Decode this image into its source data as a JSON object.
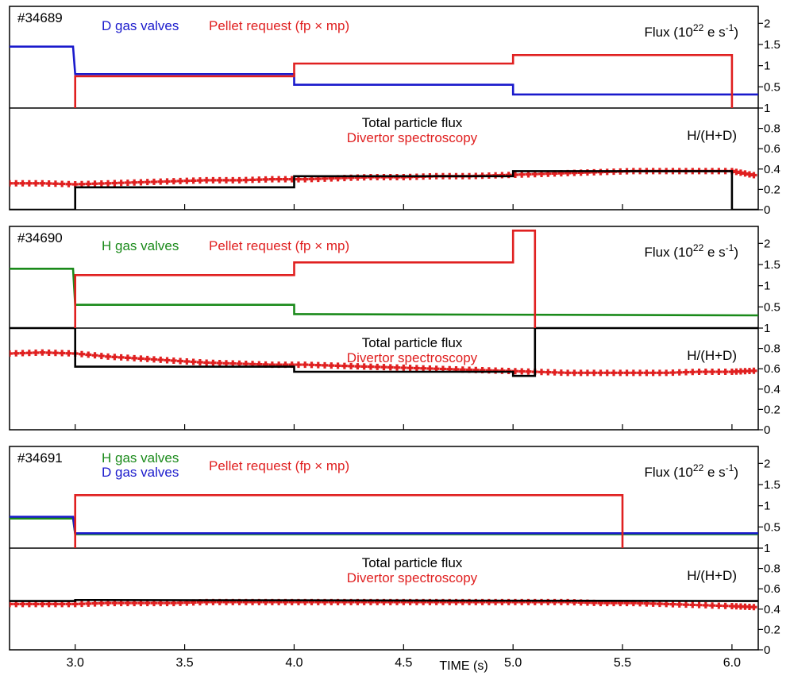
{
  "colors": {
    "pellet": "#e02020",
    "d_gas": "#1a1acc",
    "h_gas": "#1a8a1a",
    "total": "#000000",
    "spectroscopy": "#e02020"
  },
  "x_axis": {
    "label": "TIME (s)",
    "range": [
      2.7,
      6.12
    ],
    "ticks": [
      3.0,
      3.5,
      4.0,
      4.5,
      5.0,
      5.5,
      6.0
    ],
    "tick_labels": [
      "3.0",
      "3.5",
      "4.0",
      "4.5",
      "5.0",
      "5.5",
      "6.0"
    ]
  },
  "chart_data": [
    {
      "type": "line",
      "shot": "#34689",
      "flux_label": "Flux (10",
      "flux_exp": "22",
      "flux_unit": " e s",
      "flux_unit_exp": "-1",
      "flux_close": ")",
      "ratio_label": "H/(H+D)",
      "legend_top": [
        {
          "text": "D gas valves",
          "color": "d_gas"
        },
        {
          "text": "Pellet request (fp × mp)",
          "color": "pellet"
        }
      ],
      "legend_bottom": [
        {
          "text": "Total particle flux",
          "color": "total"
        },
        {
          "text": "Divertor spectroscopy",
          "color": "spectroscopy"
        }
      ],
      "top_axis": {
        "range": [
          0,
          2.4
        ],
        "ticks": [
          0.5,
          1,
          1.5,
          2
        ],
        "tick_labels": [
          "0.5",
          "1",
          "1.5",
          "2"
        ]
      },
      "bottom_axis": {
        "range": [
          0,
          1
        ],
        "ticks": [
          0,
          0.2,
          0.4,
          0.6,
          0.8,
          1
        ],
        "tick_labels": [
          "0",
          "0.2",
          "0.4",
          "0.6",
          "0.8",
          "1"
        ]
      },
      "top_series": [
        {
          "name": "D gas valves",
          "color": "d_gas",
          "points": [
            [
              2.7,
              1.45
            ],
            [
              2.99,
              1.45
            ],
            [
              3.0,
              0.8
            ],
            [
              4.0,
              0.8
            ],
            [
              4.0,
              0.55
            ],
            [
              5.0,
              0.55
            ],
            [
              5.0,
              0.32
            ],
            [
              6.12,
              0.32
            ]
          ]
        },
        {
          "name": "Pellet request (fp × mp)",
          "color": "pellet",
          "points": [
            [
              3.0,
              0.0
            ],
            [
              3.0,
              0.75
            ],
            [
              4.0,
              0.75
            ],
            [
              4.0,
              1.05
            ],
            [
              5.0,
              1.05
            ],
            [
              5.0,
              1.25
            ],
            [
              6.0,
              1.25
            ],
            [
              6.0,
              0.0
            ]
          ]
        }
      ],
      "bottom_series": [
        {
          "name": "Total particle flux",
          "color": "total",
          "points": [
            [
              2.7,
              0.0
            ],
            [
              3.0,
              0.0
            ],
            [
              3.0,
              0.22
            ],
            [
              4.0,
              0.22
            ],
            [
              4.0,
              0.33
            ],
            [
              5.0,
              0.33
            ],
            [
              5.0,
              0.38
            ],
            [
              6.0,
              0.38
            ],
            [
              6.0,
              0.0
            ],
            [
              6.12,
              0.0
            ]
          ]
        }
      ],
      "spectroscopy": {
        "name": "Divertor spectroscopy",
        "color": "spectroscopy",
        "x": [
          2.7,
          2.85,
          3.0,
          3.15,
          3.3,
          3.45,
          3.6,
          3.75,
          3.9,
          4.05,
          4.2,
          4.35,
          4.5,
          4.65,
          4.8,
          4.95,
          5.1,
          5.25,
          5.4,
          5.55,
          5.7,
          5.85,
          6.0,
          6.1
        ],
        "y": [
          0.26,
          0.26,
          0.25,
          0.26,
          0.27,
          0.28,
          0.29,
          0.29,
          0.3,
          0.3,
          0.31,
          0.32,
          0.32,
          0.33,
          0.33,
          0.34,
          0.35,
          0.36,
          0.37,
          0.38,
          0.38,
          0.38,
          0.38,
          0.34
        ]
      }
    },
    {
      "type": "line",
      "shot": "#34690",
      "flux_label": "Flux (10",
      "flux_exp": "22",
      "flux_unit": " e s",
      "flux_unit_exp": "-1",
      "flux_close": ")",
      "ratio_label": "H/(H+D)",
      "legend_top": [
        {
          "text": "H gas valves",
          "color": "h_gas"
        },
        {
          "text": "Pellet request (fp × mp)",
          "color": "pellet"
        }
      ],
      "legend_bottom": [
        {
          "text": "Total particle flux",
          "color": "total"
        },
        {
          "text": "Divertor spectroscopy",
          "color": "spectroscopy"
        }
      ],
      "top_axis": {
        "range": [
          0,
          2.4
        ],
        "ticks": [
          0.5,
          1,
          1.5,
          2
        ],
        "tick_labels": [
          "0.5",
          "1",
          "1.5",
          "2"
        ]
      },
      "bottom_axis": {
        "range": [
          0,
          1
        ],
        "ticks": [
          0,
          0.2,
          0.4,
          0.6,
          0.8,
          1
        ],
        "tick_labels": [
          "0",
          "0.2",
          "0.4",
          "0.6",
          "0.8",
          "1"
        ]
      },
      "top_series": [
        {
          "name": "H gas valves",
          "color": "h_gas",
          "points": [
            [
              2.7,
              1.4
            ],
            [
              2.99,
              1.4
            ],
            [
              3.0,
              0.55
            ],
            [
              4.0,
              0.55
            ],
            [
              4.0,
              0.33
            ],
            [
              6.12,
              0.3
            ]
          ]
        },
        {
          "name": "Pellet request (fp × mp)",
          "color": "pellet",
          "points": [
            [
              3.0,
              0.0
            ],
            [
              3.0,
              1.25
            ],
            [
              4.0,
              1.25
            ],
            [
              4.0,
              1.55
            ],
            [
              5.0,
              1.55
            ],
            [
              5.0,
              2.3
            ],
            [
              5.1,
              2.3
            ],
            [
              5.1,
              0.0
            ]
          ]
        }
      ],
      "bottom_series": [
        {
          "name": "Total particle flux",
          "color": "total",
          "points": [
            [
              2.7,
              1.0
            ],
            [
              3.0,
              1.0
            ],
            [
              3.0,
              0.62
            ],
            [
              4.0,
              0.62
            ],
            [
              4.0,
              0.57
            ],
            [
              5.0,
              0.57
            ],
            [
              5.0,
              0.53
            ],
            [
              5.1,
              0.53
            ],
            [
              5.1,
              1.0
            ],
            [
              6.12,
              1.0
            ]
          ]
        }
      ],
      "spectroscopy": {
        "name": "Divertor spectroscopy",
        "color": "spectroscopy",
        "x": [
          2.7,
          2.85,
          3.0,
          3.15,
          3.3,
          3.45,
          3.6,
          3.75,
          3.9,
          4.05,
          4.2,
          4.35,
          4.5,
          4.65,
          4.8,
          4.95,
          5.1,
          5.25,
          5.4,
          5.55,
          5.7,
          5.85,
          6.0,
          6.1
        ],
        "y": [
          0.75,
          0.76,
          0.75,
          0.72,
          0.7,
          0.68,
          0.66,
          0.65,
          0.64,
          0.64,
          0.63,
          0.62,
          0.61,
          0.6,
          0.59,
          0.58,
          0.57,
          0.56,
          0.56,
          0.56,
          0.56,
          0.57,
          0.57,
          0.58
        ]
      }
    },
    {
      "type": "line",
      "shot": "#34691",
      "flux_label": "Flux (10",
      "flux_exp": "22",
      "flux_unit": " e s",
      "flux_unit_exp": "-1",
      "flux_close": ")",
      "ratio_label": "H/(H+D)",
      "legend_top": [
        {
          "text": "H gas valves",
          "color": "h_gas"
        },
        {
          "text": "D gas valves",
          "color": "d_gas"
        },
        {
          "text": "Pellet request (fp × mp)",
          "color": "pellet"
        }
      ],
      "legend_bottom": [
        {
          "text": "Total particle flux",
          "color": "total"
        },
        {
          "text": "Divertor spectroscopy",
          "color": "spectroscopy"
        }
      ],
      "top_axis": {
        "range": [
          0,
          2.4
        ],
        "ticks": [
          0.5,
          1,
          1.5,
          2
        ],
        "tick_labels": [
          "0.5",
          "1",
          "1.5",
          "2"
        ]
      },
      "bottom_axis": {
        "range": [
          0,
          1
        ],
        "ticks": [
          0,
          0.2,
          0.4,
          0.6,
          0.8,
          1
        ],
        "tick_labels": [
          "0",
          "0.2",
          "0.4",
          "0.6",
          "0.8",
          "1"
        ]
      },
      "top_series": [
        {
          "name": "H gas valves",
          "color": "h_gas",
          "points": [
            [
              2.7,
              0.7
            ],
            [
              2.99,
              0.7
            ],
            [
              3.0,
              0.33
            ],
            [
              6.12,
              0.33
            ]
          ]
        },
        {
          "name": "D gas valves",
          "color": "d_gas",
          "points": [
            [
              2.7,
              0.74
            ],
            [
              2.99,
              0.74
            ],
            [
              3.0,
              0.35
            ],
            [
              6.12,
              0.35
            ]
          ]
        },
        {
          "name": "Pellet request (fp × mp)",
          "color": "pellet",
          "points": [
            [
              3.0,
              0.0
            ],
            [
              3.0,
              1.25
            ],
            [
              5.5,
              1.25
            ],
            [
              5.5,
              0.0
            ]
          ]
        }
      ],
      "bottom_series": [
        {
          "name": "Total particle flux",
          "color": "total",
          "points": [
            [
              2.7,
              0.48
            ],
            [
              3.0,
              0.48
            ],
            [
              3.0,
              0.49
            ],
            [
              6.12,
              0.48
            ]
          ]
        }
      ],
      "spectroscopy": {
        "name": "Divertor spectroscopy",
        "color": "spectroscopy",
        "x": [
          2.7,
          2.85,
          3.0,
          3.15,
          3.3,
          3.45,
          3.6,
          3.75,
          3.9,
          4.05,
          4.2,
          4.35,
          4.5,
          4.65,
          4.8,
          4.95,
          5.1,
          5.25,
          5.4,
          5.55,
          5.7,
          5.85,
          6.0,
          6.1
        ],
        "y": [
          0.45,
          0.45,
          0.45,
          0.46,
          0.46,
          0.46,
          0.47,
          0.47,
          0.47,
          0.47,
          0.47,
          0.47,
          0.47,
          0.47,
          0.47,
          0.47,
          0.47,
          0.47,
          0.46,
          0.46,
          0.45,
          0.44,
          0.43,
          0.42
        ]
      }
    }
  ]
}
